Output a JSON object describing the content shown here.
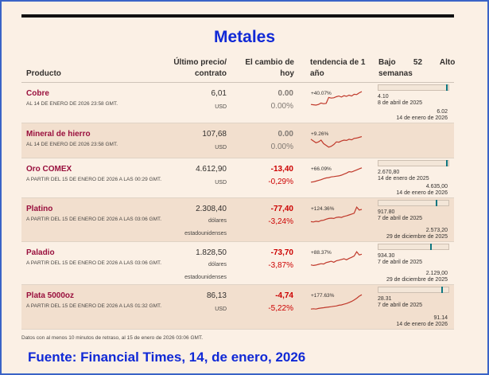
{
  "title": "Metales",
  "headers": {
    "product": "Producto",
    "price": "Último precio/\ncontrato",
    "change": "El cambio de\nhoy",
    "trend": "tendencia de 1\naño",
    "range": "Bajo        52        Alto\nsemanas"
  },
  "rows": [
    {
      "name": "Cobre",
      "date": "AL 14 DE ENERO DE 2026 23:58 GMT.",
      "price": "6,01",
      "unit": "USD",
      "change": "0.00",
      "pct": "0.00%",
      "trend_label": "+40.07%",
      "low": "4.10",
      "low_date": "8 de abril de 2025",
      "high": "6.02",
      "high_date": "14 de enero de 2026",
      "range_position": 0.99,
      "sparkline": [
        0.22,
        0.2,
        0.18,
        0.22,
        0.3,
        0.26,
        0.28,
        0.62,
        0.58,
        0.6,
        0.66,
        0.7,
        0.64,
        0.72,
        0.68,
        0.75,
        0.7,
        0.8,
        0.78,
        0.88,
        0.95
      ]
    },
    {
      "name": "Mineral de hierro",
      "date": "AL 14 DE ENERO DE 2026 23:58 GMT.",
      "price": "107,68",
      "unit": "USD",
      "change": "0.00",
      "pct": "0.00%",
      "trend_label": "+9.26%",
      "sparkline": [
        0.55,
        0.45,
        0.35,
        0.4,
        0.5,
        0.3,
        0.2,
        0.1,
        0.15,
        0.25,
        0.4,
        0.38,
        0.45,
        0.5,
        0.48,
        0.55,
        0.52,
        0.6,
        0.62,
        0.66,
        0.7
      ]
    },
    {
      "name": "Oro COMEX",
      "date": "A PARTIR DEL 15 DE ENERO DE 2026 A LAS 00:29 GMT.",
      "price": "4.612,90",
      "unit": "USD",
      "change": "-13,40",
      "pct": "-0,29%",
      "trend_label": "+66.09%",
      "low": "2.670,80",
      "low_date": "14 de enero de 2025",
      "high": "4.635,00",
      "high_date": "14 de enero de 2026",
      "range_position": 0.99,
      "sparkline": [
        0.1,
        0.12,
        0.16,
        0.2,
        0.24,
        0.3,
        0.34,
        0.36,
        0.4,
        0.42,
        0.44,
        0.46,
        0.5,
        0.56,
        0.62,
        0.7,
        0.68,
        0.74,
        0.8,
        0.86,
        0.92
      ]
    },
    {
      "name": "Platino",
      "date": "A PARTIR DEL 15 DE ENERO DE 2026 A LAS 03:06 GMT.",
      "price": "2.308,40",
      "unit": "dólares\nestadounidenses",
      "change": "-77,40",
      "pct": "-3,24%",
      "trend_label": "+124.36%",
      "low": "917.80",
      "low_date": "7 de abril de 2025",
      "high": "2.573,20",
      "high_date": "29 de diciembre de 2025",
      "range_position": 0.84,
      "sparkline": [
        0.12,
        0.1,
        0.14,
        0.12,
        0.18,
        0.2,
        0.26,
        0.3,
        0.32,
        0.3,
        0.36,
        0.38,
        0.36,
        0.42,
        0.45,
        0.5,
        0.55,
        0.6,
        0.95,
        0.78,
        0.82
      ]
    },
    {
      "name": "Paladio",
      "date": "A PARTIR DEL 15 DE ENERO DE 2026 A LAS 03:06 GMT.",
      "price": "1.828,50",
      "unit": "dólares\nestadounidenses",
      "change": "-73,70",
      "pct": "-3,87%",
      "trend_label": "+88.37%",
      "low": "934.30",
      "low_date": "7 de abril de 2025",
      "high": "2.129,00",
      "high_date": "29 de diciembre de 2025",
      "range_position": 0.75,
      "sparkline": [
        0.15,
        0.12,
        0.14,
        0.18,
        0.22,
        0.2,
        0.28,
        0.32,
        0.36,
        0.3,
        0.38,
        0.42,
        0.46,
        0.5,
        0.44,
        0.52,
        0.58,
        0.66,
        0.9,
        0.72,
        0.76
      ]
    },
    {
      "name": "Plata 5000oz",
      "date": "A PARTIR DEL 15 DE ENERO DE 2026 A LAS 01:32 GMT.",
      "price": "86,13",
      "unit": "USD",
      "change": "-4,74",
      "pct": "-5,22%",
      "trend_label": "+177.63%",
      "low": "28.31",
      "low_date": "7 de abril de 2025",
      "high": "91.14",
      "high_date": "14 de enero de 2026",
      "range_position": 0.92,
      "sparkline": [
        0.08,
        0.1,
        0.08,
        0.12,
        0.14,
        0.16,
        0.18,
        0.2,
        0.22,
        0.24,
        0.26,
        0.3,
        0.32,
        0.36,
        0.4,
        0.46,
        0.52,
        0.6,
        0.7,
        0.82,
        0.9
      ]
    }
  ],
  "note": "Datos con al menos 10 minutos de retraso, al 15 de enero de 2026 03:06 GMT.",
  "source": "Fuente: Financial Times, 14, de enero, 2026",
  "colors": {
    "positive": "#c0392b",
    "negative": "#cc0000",
    "neutral": "#807973",
    "product": "#990f3d",
    "title": "#1029d6"
  }
}
